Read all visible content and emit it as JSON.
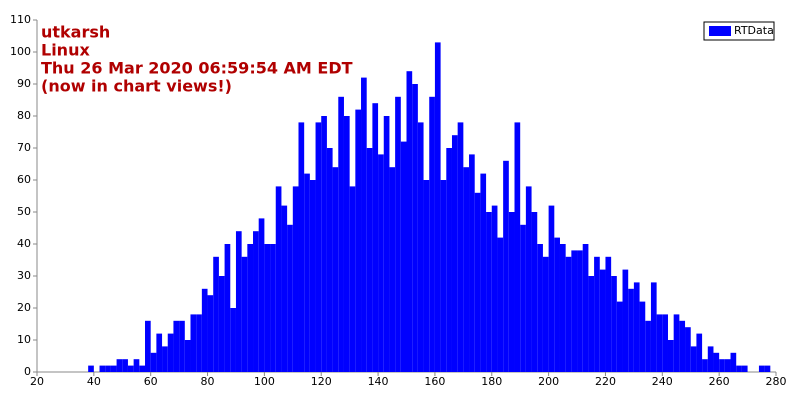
{
  "chart_data": {
    "type": "histogram",
    "title_lines": [
      "utkarsh",
      "Linux",
      "Thu 26 Mar 2020 06:59:54 AM EDT",
      "(now in chart views!)"
    ],
    "bins": [
      36,
      38,
      40,
      42,
      44,
      46,
      48,
      50,
      52,
      54,
      56,
      58,
      60,
      62,
      64,
      66,
      68,
      70,
      72,
      74,
      76,
      78,
      80,
      82,
      84,
      86,
      88,
      90,
      92,
      94,
      96,
      98,
      100,
      102,
      104,
      106,
      108,
      110,
      112,
      114,
      116,
      118,
      120,
      122,
      124,
      126,
      128,
      130,
      132,
      134,
      136,
      138,
      140,
      142,
      144,
      146,
      148,
      150,
      152,
      154,
      156,
      158,
      160,
      162,
      164,
      166,
      168,
      170,
      172,
      174,
      176,
      178,
      180,
      182,
      184,
      186,
      188,
      190,
      192,
      194,
      196,
      198,
      200,
      202,
      204,
      206,
      208,
      210,
      212,
      214,
      216,
      218,
      220,
      222,
      224,
      226,
      228,
      230,
      232,
      234,
      236,
      238,
      240,
      242,
      244,
      246,
      248,
      250,
      252,
      254,
      256,
      258,
      260,
      262,
      264,
      266,
      268,
      270,
      272,
      274,
      276,
      278
    ],
    "series": [
      {
        "name": "RTData",
        "color": "#0000ff",
        "values": [
          0,
          2,
          0,
          2,
          2,
          2,
          4,
          4,
          2,
          4,
          2,
          16,
          6,
          12,
          8,
          12,
          16,
          16,
          10,
          18,
          18,
          26,
          24,
          36,
          30,
          40,
          20,
          44,
          36,
          40,
          44,
          48,
          40,
          40,
          58,
          52,
          46,
          58,
          78,
          62,
          60,
          78,
          80,
          70,
          64,
          86,
          80,
          58,
          82,
          92,
          70,
          84,
          68,
          80,
          64,
          86,
          72,
          94,
          90,
          78,
          60,
          86,
          103,
          60,
          70,
          74,
          78,
          64,
          68,
          56,
          62,
          50,
          52,
          42,
          66,
          50,
          78,
          46,
          58,
          50,
          40,
          36,
          52,
          42,
          40,
          36,
          38,
          38,
          40,
          30,
          36,
          32,
          36,
          30,
          22,
          32,
          26,
          28,
          22,
          16,
          28,
          18,
          18,
          10,
          18,
          16,
          14,
          8,
          12,
          4,
          8,
          6,
          4,
          4,
          6,
          2,
          2,
          0,
          0,
          2,
          2
        ]
      }
    ],
    "xlim": [
      20,
      280
    ],
    "xticks": [
      20,
      40,
      60,
      80,
      100,
      120,
      140,
      160,
      180,
      200,
      220,
      240,
      260,
      280
    ],
    "ylim": [
      0,
      110
    ],
    "yticks": [
      0,
      10,
      20,
      30,
      40,
      50,
      60,
      70,
      80,
      90,
      100,
      110
    ],
    "legend": "top-right"
  }
}
